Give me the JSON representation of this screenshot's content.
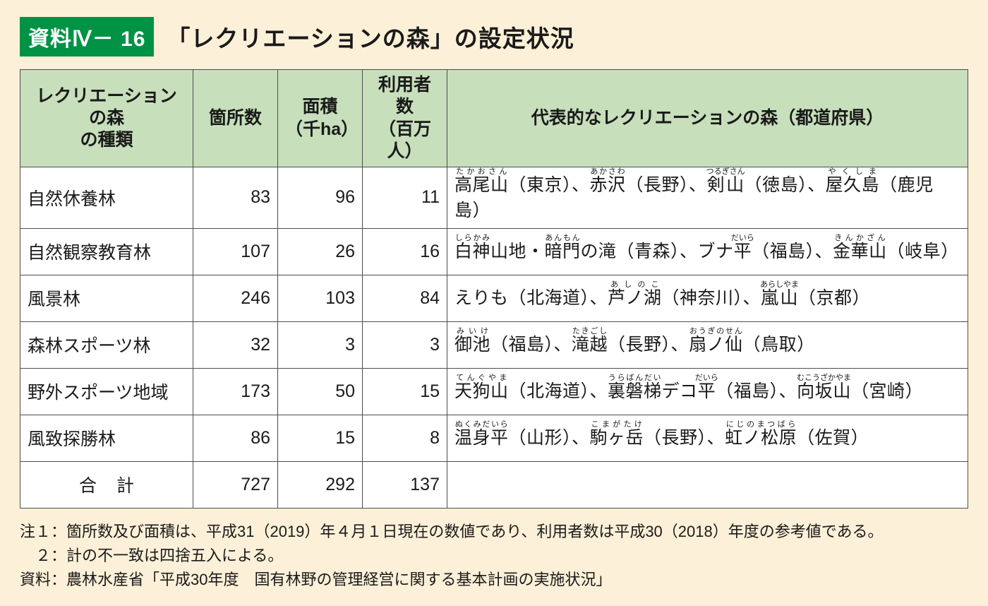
{
  "colors": {
    "page_bg": "#fcf0d8",
    "badge_bg": "#009245",
    "badge_fg": "#ffffff",
    "header_bg": "#c7dfbb",
    "cell_bg": "#ffffff",
    "border": "#4d4d4d",
    "text": "#1a1a1a"
  },
  "heading": {
    "badge": "資料Ⅳ－ 16",
    "title": "「レクリエーションの森」の設定状況"
  },
  "table": {
    "columns": {
      "type": "レクリエーションの森\nの種類",
      "count": "箇所数",
      "area": "面積\n（千ha）",
      "users": "利用者数\n（百万人）",
      "representatives": "代表的なレクリエーションの森（都道府県）"
    },
    "rows": [
      {
        "type": "自然休養林",
        "count": "83",
        "area": "96",
        "users": "11",
        "rep": "<ruby>高尾山<rt>たかおさん</rt></ruby>（東京）、<ruby>赤沢<rt>あかさわ</rt></ruby>（長野）、<ruby>剣山<rt>つるぎさん</rt></ruby>（徳島）、<ruby>屋久島<rt>やくしま</rt></ruby>（鹿児島）"
      },
      {
        "type": "自然観察教育林",
        "count": "107",
        "area": "26",
        "users": "16",
        "rep": "<ruby>白神<rt>しらかみ</rt></ruby>山地・<ruby>暗門<rt>あんもん</rt></ruby>の滝（青森）、ブナ<ruby>平<rt>だいら</rt></ruby>（福島）、<ruby>金華山<rt>きんかざん</rt></ruby>（岐阜）"
      },
      {
        "type": "風景林",
        "count": "246",
        "area": "103",
        "users": "84",
        "rep": "えりも（北海道）、<ruby>芦ノ湖<rt>あしのこ</rt></ruby>（神奈川）、<ruby>嵐山<rt>あらしやま</rt></ruby>（京都）"
      },
      {
        "type": "森林スポーツ林",
        "count": "32",
        "area": "3",
        "users": "3",
        "rep": "<ruby>御池<rt>みいけ</rt></ruby>（福島）、<ruby>滝越<rt>たきごし</rt></ruby>（長野）、<ruby>扇ノ仙<rt>おうぎのせん</rt></ruby>（鳥取）"
      },
      {
        "type": "野外スポーツ地域",
        "count": "173",
        "area": "50",
        "users": "15",
        "rep": "<ruby>天狗山<rt>てんぐやま</rt></ruby>（北海道）、<ruby>裏磐梯<rt>うらばんだい</rt></ruby>デコ<ruby>平<rt>だいら</rt></ruby>（福島）、<ruby>向坂山<rt>むこうざかやま</rt></ruby>（宮崎）"
      },
      {
        "type": "風致探勝林",
        "count": "86",
        "area": "15",
        "users": "8",
        "rep": "<ruby>温身平<rt>ぬくみだいら</rt></ruby>（山形）、<ruby>駒ヶ岳<rt>こまがたけ</rt></ruby>（長野）、<ruby>虹ノ松原<rt>にじのまつばら</rt></ruby>（佐賀）"
      }
    ],
    "total": {
      "label": "合計",
      "count": "727",
      "area": "292",
      "users": "137",
      "rep": ""
    }
  },
  "footnotes": {
    "n1": "注１：箇所数及び面積は、平成31（2019）年４月１日現在の数値であり、利用者数は平成30（2018）年度の参考値である。",
    "n2": "　２：計の不一致は四捨五入による。",
    "src": "資料：農林水産省「平成30年度　国有林野の管理経営に関する基本計画の実施状況」"
  }
}
